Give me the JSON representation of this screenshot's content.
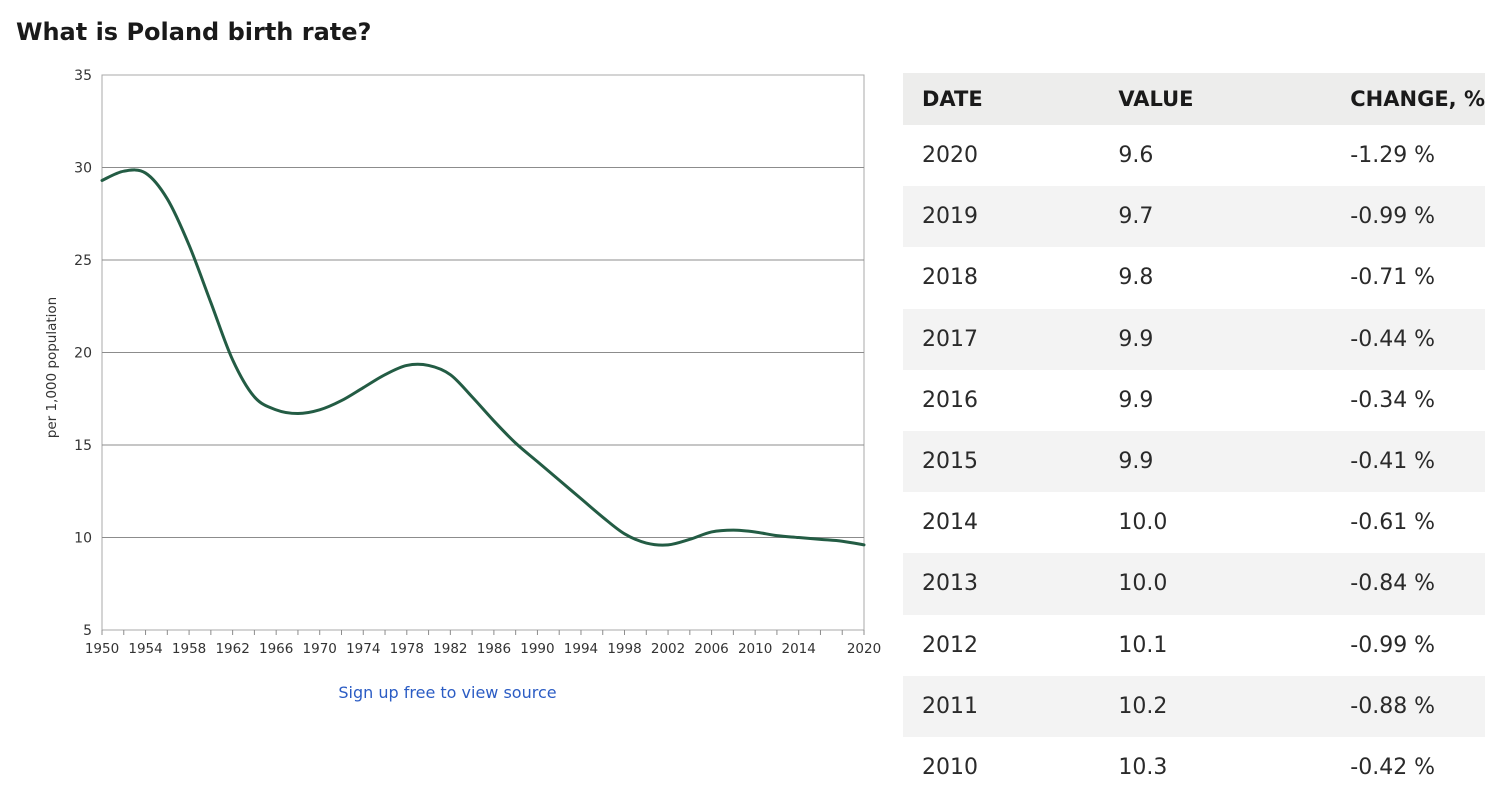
{
  "page": {
    "title": "What is Poland birth rate?",
    "source_link": "Sign up free to view source"
  },
  "table": {
    "headers": [
      "DATE",
      "VALUE",
      "CHANGE, %"
    ],
    "rows": [
      [
        "2020",
        "9.6",
        "-1.29 %"
      ],
      [
        "2019",
        "9.7",
        "-0.99 %"
      ],
      [
        "2018",
        "9.8",
        "-0.71 %"
      ],
      [
        "2017",
        "9.9",
        "-0.44 %"
      ],
      [
        "2016",
        "9.9",
        "-0.34 %"
      ],
      [
        "2015",
        "9.9",
        "-0.41 %"
      ],
      [
        "2014",
        "10.0",
        "-0.61 %"
      ],
      [
        "2013",
        "10.0",
        "-0.84 %"
      ],
      [
        "2012",
        "10.1",
        "-0.99 %"
      ],
      [
        "2011",
        "10.2",
        "-0.88 %"
      ],
      [
        "2010",
        "10.3",
        "-0.42 %"
      ]
    ]
  },
  "colors": {
    "line": "#235c44",
    "grid": "#8c8c8c",
    "axis_text": "#333333",
    "link": "#2b5cc4",
    "header_bg": "#ededec",
    "stripe_bg": "#f3f3f3"
  },
  "chart_data": {
    "type": "line",
    "title": "",
    "xlabel": "",
    "ylabel": "per 1,000 population",
    "xlim": [
      1950,
      2020
    ],
    "ylim": [
      5,
      35
    ],
    "yticks": [
      5,
      10,
      15,
      20,
      25,
      30,
      35
    ],
    "xticks": [
      1950,
      1954,
      1958,
      1962,
      1966,
      1970,
      1974,
      1978,
      1982,
      1986,
      1990,
      1994,
      1998,
      2002,
      2006,
      2010,
      2014,
      2020
    ],
    "grid": true,
    "legend": "none",
    "series": [
      {
        "x": [
          1950,
          1952,
          1954,
          1956,
          1958,
          1960,
          1962,
          1964,
          1966,
          1968,
          1970,
          1972,
          1974,
          1976,
          1978,
          1980,
          1982,
          1984,
          1986,
          1988,
          1990,
          1992,
          1994,
          1996,
          1998,
          2000,
          2002,
          2004,
          2006,
          2008,
          2010,
          2012,
          2014,
          2016,
          2018,
          2020
        ],
        "y": [
          29.3,
          29.8,
          29.7,
          28.3,
          25.8,
          22.7,
          19.6,
          17.6,
          16.9,
          16.7,
          16.9,
          17.4,
          18.1,
          18.8,
          19.3,
          19.3,
          18.8,
          17.6,
          16.3,
          15.1,
          14.1,
          13.1,
          12.1,
          11.1,
          10.2,
          9.7,
          9.6,
          9.9,
          10.3,
          10.4,
          10.3,
          10.1,
          10.0,
          9.9,
          9.8,
          9.6
        ]
      }
    ]
  }
}
